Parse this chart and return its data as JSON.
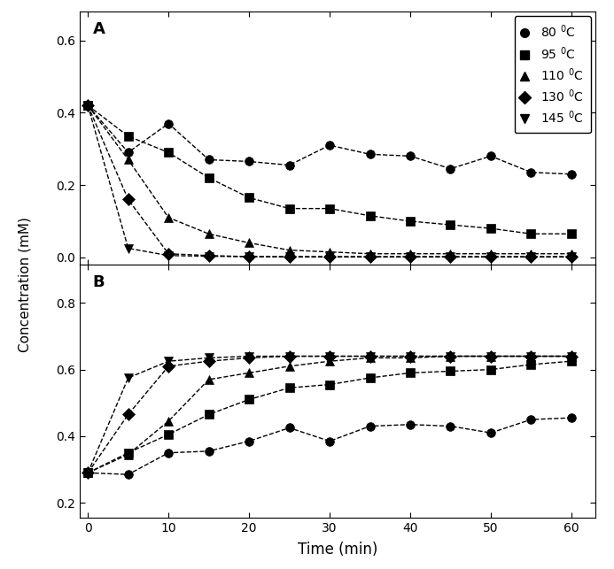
{
  "panel_A": {
    "title": "A",
    "ylim": [
      -0.02,
      0.68
    ],
    "yticks": [
      0.0,
      0.2,
      0.4,
      0.6
    ],
    "series": [
      {
        "label": "80 $^{0}$C",
        "marker": "o",
        "x": [
          0,
          5,
          10,
          15,
          20,
          25,
          30,
          35,
          40,
          45,
          50,
          55,
          60
        ],
        "y": [
          0.42,
          0.29,
          0.37,
          0.27,
          0.265,
          0.255,
          0.31,
          0.285,
          0.28,
          0.245,
          0.28,
          0.235,
          0.23
        ]
      },
      {
        "label": "95 $^{0}$C",
        "marker": "s",
        "x": [
          0,
          5,
          10,
          15,
          20,
          25,
          30,
          35,
          40,
          45,
          50,
          55,
          60
        ],
        "y": [
          0.42,
          0.335,
          0.29,
          0.22,
          0.165,
          0.135,
          0.135,
          0.115,
          0.1,
          0.09,
          0.08,
          0.065,
          0.065
        ]
      },
      {
        "label": "110 $^{0}$C",
        "marker": "^",
        "x": [
          0,
          5,
          10,
          15,
          20,
          25,
          30,
          35,
          40,
          45,
          50,
          55,
          60
        ],
        "y": [
          0.42,
          0.27,
          0.11,
          0.065,
          0.04,
          0.02,
          0.015,
          0.01,
          0.01,
          0.01,
          0.01,
          0.01,
          0.01
        ]
      },
      {
        "label": "130 $^{0}$C",
        "marker": "D",
        "x": [
          0,
          5,
          10,
          15,
          20,
          25,
          30,
          35,
          40,
          45,
          50,
          55,
          60
        ],
        "y": [
          0.42,
          0.16,
          0.01,
          0.005,
          0.002,
          0.002,
          0.002,
          0.002,
          0.002,
          0.002,
          0.002,
          0.002,
          0.002
        ]
      },
      {
        "label": "145 $^{0}$C",
        "marker": "v",
        "x": [
          0,
          5,
          10,
          15,
          20,
          25,
          30,
          35,
          40,
          45,
          50,
          55,
          60
        ],
        "y": [
          0.42,
          0.025,
          0.005,
          0.003,
          0.002,
          0.001,
          0.001,
          0.001,
          0.001,
          0.001,
          0.001,
          0.001,
          0.001
        ]
      }
    ]
  },
  "panel_B": {
    "title": "B",
    "ylim": [
      0.155,
      0.915
    ],
    "yticks": [
      0.2,
      0.4,
      0.6,
      0.8
    ],
    "series": [
      {
        "label": "80 $^{0}$C",
        "marker": "o",
        "x": [
          0,
          5,
          10,
          15,
          20,
          25,
          30,
          35,
          40,
          45,
          50,
          55,
          60
        ],
        "y": [
          0.29,
          0.285,
          0.35,
          0.355,
          0.385,
          0.425,
          0.385,
          0.43,
          0.435,
          0.43,
          0.41,
          0.45,
          0.455
        ]
      },
      {
        "label": "95 $^{0}$C",
        "marker": "s",
        "x": [
          0,
          5,
          10,
          15,
          20,
          25,
          30,
          35,
          40,
          45,
          50,
          55,
          60
        ],
        "y": [
          0.29,
          0.35,
          0.405,
          0.465,
          0.51,
          0.545,
          0.555,
          0.575,
          0.59,
          0.595,
          0.6,
          0.615,
          0.625
        ]
      },
      {
        "label": "110 $^{0}$C",
        "marker": "^",
        "x": [
          0,
          5,
          10,
          15,
          20,
          25,
          30,
          35,
          40,
          45,
          50,
          55,
          60
        ],
        "y": [
          0.29,
          0.345,
          0.445,
          0.57,
          0.59,
          0.61,
          0.625,
          0.635,
          0.635,
          0.64,
          0.64,
          0.64,
          0.64
        ]
      },
      {
        "label": "130 $^{0}$C",
        "marker": "D",
        "x": [
          0,
          5,
          10,
          15,
          20,
          25,
          30,
          35,
          40,
          45,
          50,
          55,
          60
        ],
        "y": [
          0.29,
          0.465,
          0.61,
          0.625,
          0.635,
          0.64,
          0.64,
          0.64,
          0.64,
          0.64,
          0.64,
          0.64,
          0.64
        ]
      },
      {
        "label": "145 $^{0}$C",
        "marker": "v",
        "x": [
          0,
          5,
          10,
          15,
          20,
          25,
          30,
          35,
          40,
          45,
          50,
          55,
          60
        ],
        "y": [
          0.29,
          0.575,
          0.625,
          0.635,
          0.64,
          0.64,
          0.64,
          0.64,
          0.64,
          0.64,
          0.64,
          0.64,
          0.64
        ]
      }
    ]
  },
  "xlabel": "Time (min)",
  "ylabel": "Concentration (mM)",
  "xlim": [
    -1,
    63
  ],
  "xticks": [
    0,
    10,
    20,
    30,
    40,
    50,
    60
  ],
  "marker_size": 7,
  "background_color": "white"
}
